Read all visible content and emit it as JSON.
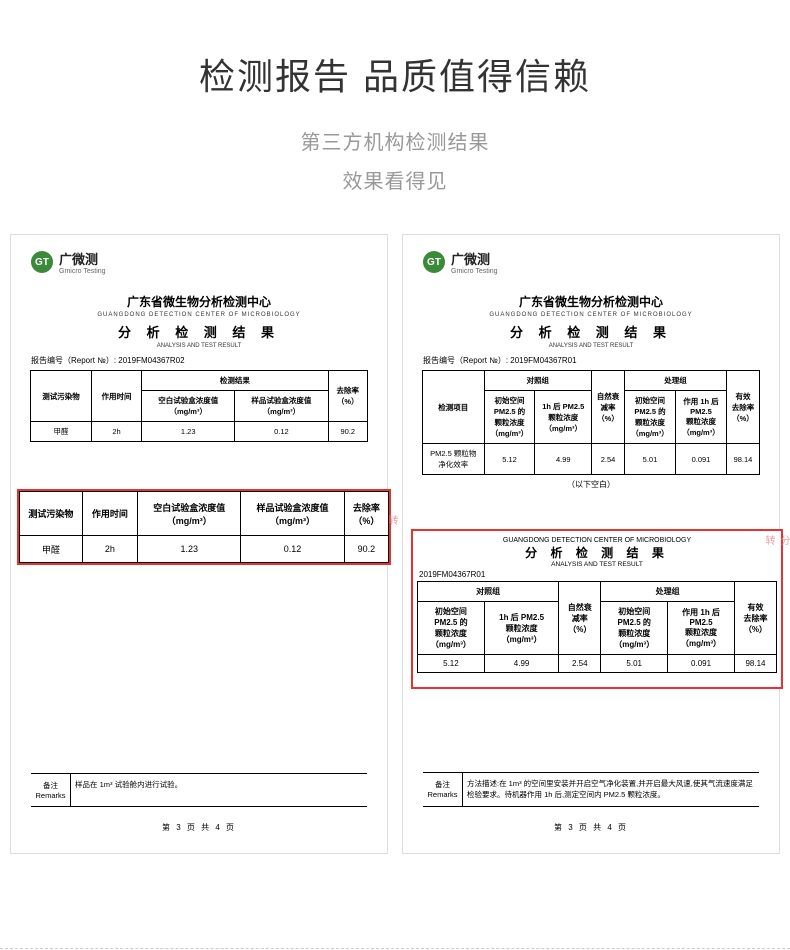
{
  "header": {
    "title": "检测报告 品质值得信赖",
    "sub1": "第三方机构检测结果",
    "sub2": "效果看得见"
  },
  "logo": {
    "badge": "GT",
    "cn": "广微测",
    "en": "Gmicro Testing"
  },
  "org": {
    "name": "广东省微生物分析检测中心",
    "en": "GUANGDONG DETECTION CENTER OF MICROBIOLOGY",
    "result_cn": "分 析 检 测 结 果",
    "result_en": "ANALYSIS AND TEST RESULT"
  },
  "report1": {
    "no_label": "报告编号（Report №）:",
    "no": "2019FM04367R02",
    "tbl": {
      "h_pollutant": "测试污染物",
      "h_time": "作用时间",
      "h_result": "检测结果",
      "h_blank": "空白试验盒浓度值\n（mg/m³）",
      "h_sample": "样品试验盒浓度值\n（mg/m³）",
      "h_rate": "去除率\n（%）",
      "r_pollutant": "甲醛",
      "r_time": "2h",
      "r_blank": "1.23",
      "r_sample": "0.12",
      "r_rate": "90.2"
    },
    "remarks_label": "备注\nRemarks",
    "remarks": "样品在 1m³ 试验舱内进行试验。",
    "page": "第 3 页 共 4 页"
  },
  "hl1": {
    "h_pollutant": "测试污染物",
    "h_time": "作用时间",
    "h_blank": "空白试验盒浓度值\n（mg/m³）",
    "h_sample": "样品试验盒浓度值\n（mg/m³）",
    "h_rate": "去除率\n（%）",
    "r_pollutant": "甲醛",
    "r_time": "2h",
    "r_blank": "1.23",
    "r_sample": "0.12",
    "r_rate": "90.2"
  },
  "report2": {
    "no_label": "报告编号（Report №）:",
    "no": "2019FM04367R01",
    "tbl": {
      "h_item": "检测项目",
      "h_control": "对照组",
      "h_treat": "处理组",
      "h_c1": "初始空间\nPM2.5 的\n颗粒浓度\n（mg/m³）",
      "h_c2": "1h 后 PM2.5\n颗粒浓度\n（mg/m³）",
      "h_nd": "自然衰\n减率\n（%）",
      "h_t1": "初始空间\nPM2.5 的\n颗粒浓度\n（mg/m³）",
      "h_t2": "作用 1h 后\nPM2.5\n颗粒浓度\n（mg/m³）",
      "h_eff": "有效\n去除率\n（%）",
      "r_item": "PM2.5 颗粒物\n净化效率",
      "r_c1": "5.12",
      "r_c2": "4.99",
      "r_nd": "2.54",
      "r_t1": "5.01",
      "r_t2": "0.091",
      "r_eff": "98.14"
    },
    "blank": "（以下空白）",
    "remarks_label": "备注\nRemarks",
    "remarks": "方法描述:在 1m³ 的空间里安装并开启空气净化装置,并开启最大风速,使其气流速度满足检验要求。待机器作用 1h 后,测定空间内 PM2.5 颗粒浓度。",
    "page": "第 3 页 共 4 页"
  },
  "hl2": {
    "en": "GUANGDONG DETECTION CENTER OF MICROBIOLOGY",
    "cn": "分 析 检 测 结 果",
    "en2": "ANALYSIS AND TEST RESULT",
    "no": "2019FM04367R01",
    "h_control": "对照组",
    "h_treat": "处理组",
    "h_c1": "初始空间\nPM2.5 的\n颗粒浓度\n（mg/m³）",
    "h_c2": "1h 后 PM2.5\n颗粒浓度\n（mg/m³）",
    "h_nd": "自然衰\n减率\n（%）",
    "h_t1": "初始空间\nPM2.5 的\n颗粒浓度\n（mg/m³）",
    "h_t2": "作用 1h 后\nPM2.5\n颗粒浓度\n（mg/m³）",
    "h_eff": "有效\n去除率\n（%）",
    "r_c1": "5.12",
    "r_c2": "4.99",
    "r_nd": "2.54",
    "r_t1": "5.01",
    "r_t2": "0.091",
    "r_eff": "98.14"
  },
  "colors": {
    "highlight": "#e73232",
    "logo_green": "#3a8a3a",
    "title": "#333333",
    "subtitle": "#999999",
    "stamp": "#e48a8a"
  }
}
